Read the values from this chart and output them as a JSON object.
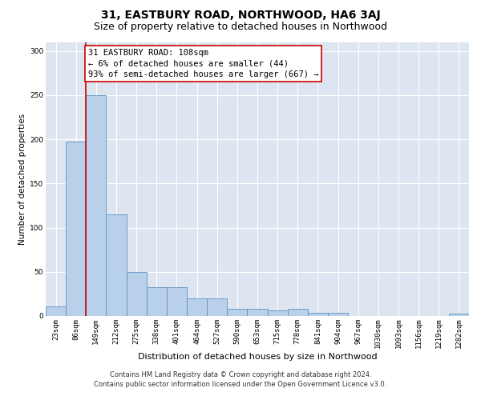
{
  "title": "31, EASTBURY ROAD, NORTHWOOD, HA6 3AJ",
  "subtitle": "Size of property relative to detached houses in Northwood",
  "xlabel": "Distribution of detached houses by size in Northwood",
  "ylabel": "Number of detached properties",
  "categories": [
    "23sqm",
    "86sqm",
    "149sqm",
    "212sqm",
    "275sqm",
    "338sqm",
    "401sqm",
    "464sqm",
    "527sqm",
    "590sqm",
    "653sqm",
    "715sqm",
    "778sqm",
    "841sqm",
    "904sqm",
    "967sqm",
    "1030sqm",
    "1093sqm",
    "1156sqm",
    "1219sqm",
    "1282sqm"
  ],
  "values": [
    11,
    197,
    250,
    115,
    50,
    33,
    33,
    20,
    20,
    8,
    8,
    6,
    8,
    4,
    4,
    0,
    0,
    0,
    0,
    0,
    3
  ],
  "bar_color": "#b8d0ea",
  "bar_edge_color": "#6090c0",
  "vline_x_idx": 1.5,
  "vline_color": "#cc0000",
  "annotation_text": "31 EASTBURY ROAD: 108sqm\n← 6% of detached houses are smaller (44)\n93% of semi-detached houses are larger (667) →",
  "annotation_box_color": "#ffffff",
  "annotation_box_edge_color": "#cc0000",
  "ylim": [
    0,
    310
  ],
  "yticks": [
    0,
    50,
    100,
    150,
    200,
    250,
    300
  ],
  "bg_color": "#dde6f0",
  "footer_line1": "Contains HM Land Registry data © Crown copyright and database right 2024.",
  "footer_line2": "Contains public sector information licensed under the Open Government Licence v3.0.",
  "title_fontsize": 10,
  "subtitle_fontsize": 9,
  "xlabel_fontsize": 8,
  "ylabel_fontsize": 7.5,
  "tick_fontsize": 6.5,
  "annotation_fontsize": 7.5,
  "footer_fontsize": 6
}
